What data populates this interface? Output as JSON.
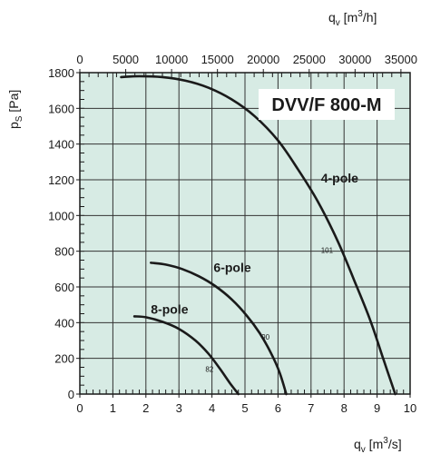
{
  "chart_data": {
    "type": "line",
    "title": "DVV/F 800-M",
    "xlabel": "qv [m3/s]",
    "xlabel_parts": {
      "main": "q",
      "sub": "v",
      "unit_open": " [m",
      "sup": "3",
      "unit_close": "/s]"
    },
    "x2label": "qv [m3/h]",
    "x2label_parts": {
      "main": "q",
      "sub": "v",
      "unit_open": " [m",
      "sup": "3",
      "unit_close": "/h]"
    },
    "ylabel": "ps [Pa]",
    "ylabel_parts": {
      "main": "p",
      "sub": "S",
      "unit": " [Pa]"
    },
    "xlim": [
      0,
      10
    ],
    "ylim": [
      0,
      1800
    ],
    "x2lim": [
      0,
      36000
    ],
    "x_ticks": [
      "0",
      "1",
      "2",
      "3",
      "4",
      "5",
      "6",
      "7",
      "8",
      "9",
      "10"
    ],
    "x2_ticks": [
      "0",
      "5000",
      "10000",
      "15000",
      "20000",
      "25000",
      "30000",
      "35000"
    ],
    "y_ticks": [
      "0",
      "200",
      "400",
      "600",
      "800",
      "1000",
      "1200",
      "1400",
      "1600",
      "1800"
    ],
    "grid": true,
    "background_color": "#d7ebe4",
    "line_color": "#1a1a1a",
    "series": [
      {
        "name": "4-pole",
        "label_at": [
          7.3,
          1185
        ],
        "annotation": "101",
        "annotation_at": [
          7.3,
          790
        ],
        "points": [
          [
            1.25,
            1775
          ],
          [
            1.8,
            1780
          ],
          [
            2.5,
            1775
          ],
          [
            3.2,
            1755
          ],
          [
            3.9,
            1715
          ],
          [
            4.6,
            1650
          ],
          [
            5.3,
            1555
          ],
          [
            6.0,
            1420
          ],
          [
            6.6,
            1260
          ],
          [
            7.2,
            1080
          ],
          [
            7.8,
            860
          ],
          [
            8.3,
            640
          ],
          [
            8.8,
            410
          ],
          [
            9.2,
            190
          ],
          [
            9.55,
            0
          ]
        ]
      },
      {
        "name": "6-pole",
        "label_at": [
          4.05,
          685
        ],
        "annotation": "90",
        "annotation_at": [
          5.5,
          305
        ],
        "points": [
          [
            2.15,
            735
          ],
          [
            2.6,
            725
          ],
          [
            3.1,
            700
          ],
          [
            3.6,
            660
          ],
          [
            4.1,
            605
          ],
          [
            4.6,
            530
          ],
          [
            5.05,
            440
          ],
          [
            5.45,
            340
          ],
          [
            5.8,
            225
          ],
          [
            6.05,
            120
          ],
          [
            6.25,
            0
          ]
        ]
      },
      {
        "name": "8-pole",
        "label_at": [
          2.15,
          450
        ],
        "annotation": "82",
        "annotation_at": [
          3.8,
          125
        ],
        "points": [
          [
            1.65,
            435
          ],
          [
            2.0,
            430
          ],
          [
            2.5,
            405
          ],
          [
            3.0,
            365
          ],
          [
            3.5,
            300
          ],
          [
            3.9,
            225
          ],
          [
            4.25,
            140
          ],
          [
            4.55,
            60
          ],
          [
            4.8,
            0
          ]
        ]
      }
    ]
  }
}
